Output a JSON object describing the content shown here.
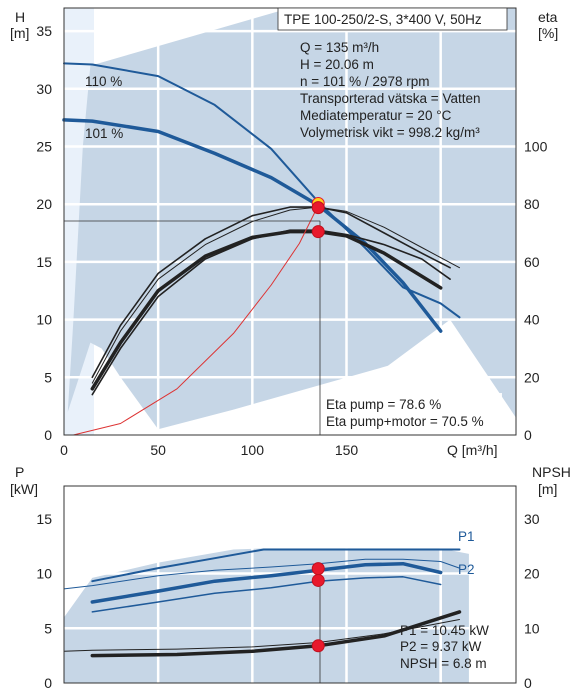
{
  "chart_data": [
    {
      "type": "line",
      "panel": "top",
      "title": "TPE 100-250/2-S, 3*400 V, 50Hz",
      "xlabel": "Q [m³/h]",
      "ylabel_left": "H\n[m]",
      "ylabel_left_lines": [
        "H",
        "[m]"
      ],
      "ylabel_right_lines": [
        "eta",
        "[%]"
      ],
      "xlim": [
        0,
        240
      ],
      "ylim_left": [
        0,
        37
      ],
      "ylim_right": [
        0,
        148
      ],
      "xticks": [
        0,
        50,
        100,
        150
      ],
      "yticks_left": [
        0,
        5,
        10,
        15,
        20,
        25,
        30,
        35
      ],
      "yticks_right": [
        0,
        20,
        40,
        60,
        80,
        100
      ],
      "grid": true,
      "speed_labels": [
        "110 %",
        "101 %"
      ],
      "info_lines": [
        "Q = 135 m³/h",
        "H = 20.06 m",
        "n = 101 % / 2978 rpm",
        "Transporterad vätska = Vatten",
        "Mediatemperatur = 20 °C",
        "Volymetrisk vikt = 998.2 kg/m³"
      ],
      "eta_lines": [
        "Eta pump = 78.6 %",
        "Eta pump+motor = 70.5 %"
      ],
      "duty_point": {
        "Q": 135,
        "H": 20.06
      },
      "operating_region": [
        [
          2,
          2
        ],
        [
          5,
          10
        ],
        [
          8,
          19
        ],
        [
          10,
          25
        ],
        [
          14,
          32
        ],
        [
          120,
          37
        ],
        [
          150,
          37
        ],
        [
          240,
          37
        ],
        [
          240,
          1.5
        ],
        [
          205,
          10
        ],
        [
          172,
          6
        ],
        [
          90,
          2.2
        ],
        [
          50,
          0.5
        ],
        [
          30,
          5
        ],
        [
          20,
          7.5
        ],
        [
          14,
          8
        ]
      ],
      "series": [
        {
          "name": "110 %",
          "axis": "left",
          "color": "#1f5a99",
          "width": 2,
          "x": [
            0,
            15,
            50,
            80,
            110,
            135,
            160,
            180,
            200,
            210
          ],
          "y": [
            32.2,
            32.1,
            31.1,
            28.6,
            24.8,
            20.2,
            16.2,
            12.8,
            11.4,
            10.2
          ]
        },
        {
          "name": "101 %",
          "axis": "left",
          "color": "#1f5a99",
          "width": 3.5,
          "x": [
            0,
            15,
            50,
            80,
            110,
            135,
            160,
            180,
            200
          ],
          "y": [
            27.3,
            27.2,
            26.3,
            24.4,
            22.3,
            19.9,
            16.6,
            13.2,
            9
          ]
        },
        {
          "axis": "right",
          "color": "#222222",
          "width": 1.6,
          "x": [
            15,
            30,
            50,
            75,
            100,
            120,
            135,
            150,
            170,
            190,
            205
          ],
          "y": [
            20,
            38,
            56,
            68,
            76,
            79,
            79,
            77,
            70,
            63,
            58
          ]
        },
        {
          "axis": "right",
          "color": "#222222",
          "width": 1,
          "x": [
            15,
            30,
            50,
            75,
            100,
            120,
            135,
            150,
            170,
            190,
            210
          ],
          "y": [
            18,
            36,
            54,
            66,
            74,
            78,
            79,
            77.5,
            72,
            65,
            58
          ]
        },
        {
          "axis": "right",
          "color": "#222222",
          "width": 3.5,
          "x": [
            15,
            30,
            50,
            75,
            100,
            120,
            135,
            150,
            170,
            190,
            200
          ],
          "y": [
            16,
            32,
            50,
            62,
            68.5,
            70.5,
            70.5,
            69,
            63,
            55,
            51
          ]
        },
        {
          "axis": "right",
          "color": "#222222",
          "width": 1.6,
          "x": [
            15,
            30,
            50,
            75,
            100,
            120,
            135,
            150,
            170,
            190,
            205
          ],
          "y": [
            14,
            30,
            48,
            61,
            68,
            71,
            71,
            69.5,
            66,
            61,
            54
          ]
        },
        {
          "axis": "left",
          "color": "#dd3333",
          "width": 1,
          "x": [
            5,
            30,
            60,
            90,
            110,
            125,
            135
          ],
          "y": [
            0,
            1,
            4,
            8.8,
            13,
            16.6,
            19.9
          ]
        }
      ],
      "markers": [
        {
          "axis": "left",
          "x": 135,
          "y": 20.06,
          "color": "#ffd21a"
        },
        {
          "axis": "left",
          "x": 135,
          "y": 19.7,
          "color": "#e8192c"
        },
        {
          "axis": "right",
          "x": 135,
          "y": 70.5,
          "color": "#e8192c"
        }
      ]
    },
    {
      "type": "line",
      "panel": "bottom",
      "xlim": [
        0,
        240
      ],
      "ylabel_left_lines": [
        "P",
        "[kW]"
      ],
      "ylabel_right_lines": [
        "NPSH",
        "[m]"
      ],
      "ylim_left": [
        0,
        18
      ],
      "ylim_right": [
        0,
        36
      ],
      "yticks_left": [
        0,
        5,
        10,
        15
      ],
      "yticks_right": [
        0,
        10,
        20,
        30
      ],
      "grid": true,
      "legend_labels": [
        "P1",
        "P2"
      ],
      "info_lines": [
        "P1 = 10.45 kW",
        "P2 = 9.37 kW",
        "NPSH = 6.8 m"
      ],
      "operating_region": [
        [
          0,
          6
        ],
        [
          15,
          9.6
        ],
        [
          50,
          11
        ],
        [
          90,
          12.2
        ],
        [
          106,
          12.3
        ],
        [
          150,
          12.3
        ],
        [
          200,
          12.3
        ],
        [
          215,
          11.8
        ],
        [
          215,
          0
        ],
        [
          0,
          0
        ]
      ],
      "series": [
        {
          "name": "P1",
          "axis": "left",
          "color": "#1f5a99",
          "width": 2,
          "x": [
            15,
            50,
            80,
            106,
            150,
            210
          ],
          "y": [
            9.3,
            10.5,
            11.4,
            12.2,
            12.2,
            12.2
          ]
        },
        {
          "axis": "left",
          "color": "#1f5a99",
          "width": 1,
          "x": [
            0,
            15,
            50,
            80,
            110,
            135,
            160,
            180,
            200,
            210
          ],
          "y": [
            8.6,
            8.9,
            9.8,
            10.3,
            10.6,
            10.9,
            11.3,
            11.3,
            11.1,
            10.5
          ]
        },
        {
          "name": "P2",
          "axis": "left",
          "color": "#1f5a99",
          "width": 3.5,
          "x": [
            15,
            50,
            80,
            110,
            135,
            160,
            180,
            200
          ],
          "y": [
            7.4,
            8.4,
            9.3,
            9.8,
            10.3,
            10.8,
            10.9,
            10.1
          ]
        },
        {
          "axis": "left",
          "color": "#1f5a99",
          "width": 1.5,
          "x": [
            15,
            50,
            80,
            110,
            135,
            160,
            180,
            200
          ],
          "y": [
            6.5,
            7.4,
            8.2,
            8.7,
            9.3,
            9.6,
            9.7,
            9
          ]
        },
        {
          "axis": "left",
          "color": "#222222",
          "width": 1,
          "x": [
            0,
            15,
            60,
            100,
            135,
            170,
            210
          ],
          "y": [
            2.9,
            3,
            3.1,
            3.3,
            3.7,
            4.5,
            5.8
          ]
        },
        {
          "axis": "right",
          "color": "#222222",
          "width": 3.5,
          "x": [
            15,
            60,
            100,
            135,
            170,
            210
          ],
          "y": [
            5,
            5.2,
            5.8,
            6.8,
            8.6,
            13
          ]
        }
      ],
      "markers": [
        {
          "axis": "left",
          "x": 135,
          "y": 10.45,
          "color": "#e8192c"
        },
        {
          "axis": "left",
          "x": 135,
          "y": 9.37,
          "color": "#e8192c"
        },
        {
          "axis": "left",
          "x": 135,
          "y": 3.4,
          "color": "#e8192c"
        }
      ]
    }
  ]
}
